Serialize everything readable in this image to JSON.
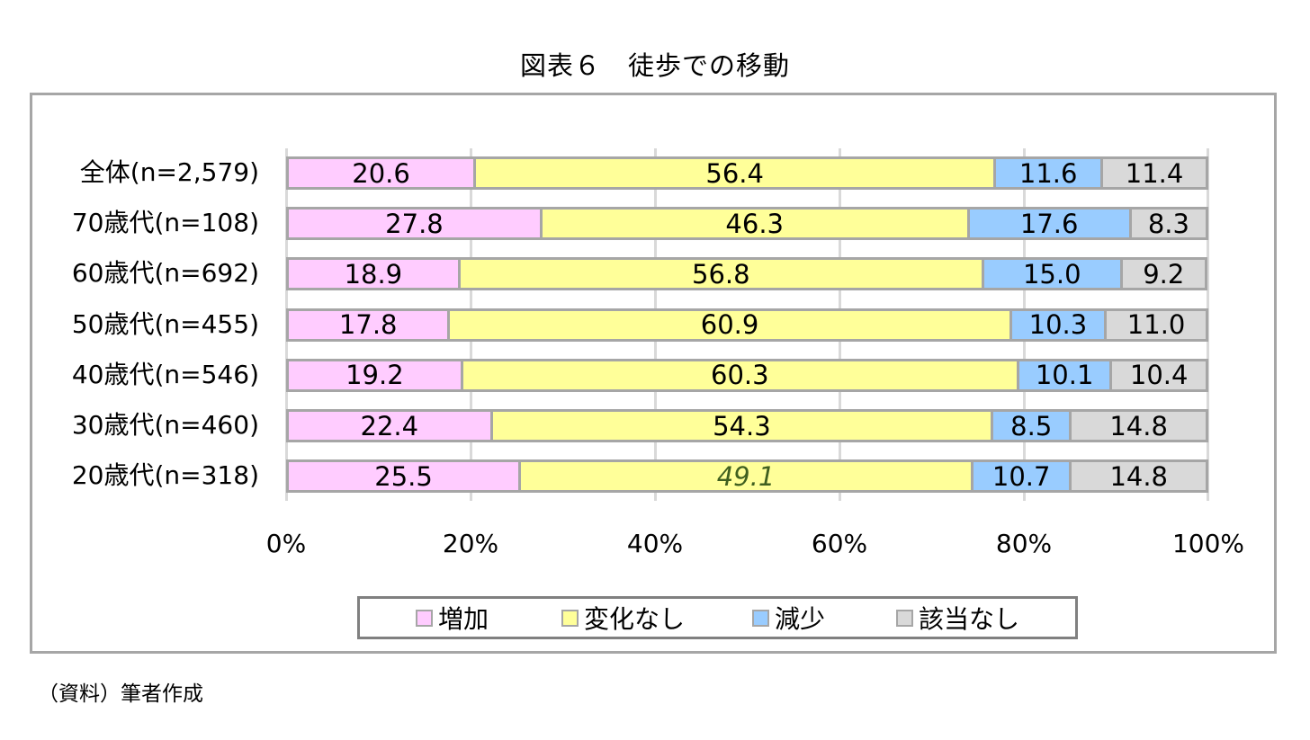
{
  "title": "図表６　徒歩での移動",
  "footnote": "（資料）筆者作成",
  "colors": {
    "increase": "#ffccff",
    "no_change": "#ffff99",
    "decrease": "#99ccff",
    "not_applicable": "#d9d9d9",
    "segment_border": "#a6a6a6",
    "frame_border": "#a6a6a6",
    "gridline": "#d9d9d9"
  },
  "legend": [
    {
      "label": "増加",
      "color": "#ffccff"
    },
    {
      "label": "変化なし",
      "color": "#ffff99"
    },
    {
      "label": "減少",
      "color": "#99ccff"
    },
    {
      "label": "該当なし",
      "color": "#d9d9d9"
    }
  ],
  "axis": {
    "ticks": [
      "0%",
      "20%",
      "40%",
      "60%",
      "80%",
      "100%"
    ]
  },
  "rows": [
    {
      "label": "全体(n=2,579)",
      "values": [
        "20.6",
        "56.4",
        "11.6",
        "11.4"
      ]
    },
    {
      "label": "70歳代(n=108)",
      "values": [
        "27.8",
        "46.3",
        "17.6",
        "8.3"
      ]
    },
    {
      "label": "60歳代(n=692)",
      "values": [
        "18.9",
        "56.8",
        "15.0",
        "9.2"
      ]
    },
    {
      "label": "50歳代(n=455)",
      "values": [
        "17.8",
        "60.9",
        "10.3",
        "11.0"
      ]
    },
    {
      "label": "40歳代(n=546)",
      "values": [
        "19.2",
        "60.3",
        "10.1",
        "10.4"
      ]
    },
    {
      "label": "30歳代(n=460)",
      "values": [
        "22.4",
        "54.3",
        "8.5",
        "14.8"
      ]
    },
    {
      "label": "20歳代(n=318)",
      "values": [
        "25.5",
        "49.1",
        "10.7",
        "14.8"
      ]
    }
  ],
  "chart_data": {
    "type": "bar",
    "orientation": "horizontal",
    "stacked": "percent",
    "title": "図表６　徒歩での移動",
    "categories": [
      "全体(n=2,579)",
      "70歳代(n=108)",
      "60歳代(n=692)",
      "50歳代(n=455)",
      "40歳代(n=546)",
      "30歳代(n=460)",
      "20歳代(n=318)"
    ],
    "series": [
      {
        "name": "増加",
        "color": "#ffccff",
        "values": [
          20.6,
          27.8,
          18.9,
          17.8,
          19.2,
          22.4,
          25.5
        ]
      },
      {
        "name": "変化なし",
        "color": "#ffff99",
        "values": [
          56.4,
          46.3,
          56.8,
          60.9,
          60.3,
          54.3,
          49.1
        ]
      },
      {
        "name": "減少",
        "color": "#99ccff",
        "values": [
          11.6,
          17.6,
          15.0,
          10.3,
          10.1,
          8.5,
          10.7
        ]
      },
      {
        "name": "該当なし",
        "color": "#d9d9d9",
        "values": [
          11.4,
          8.3,
          9.2,
          11.0,
          10.4,
          14.8,
          14.8
        ]
      }
    ],
    "xlabel": "",
    "ylabel": "",
    "xlim": [
      0,
      100
    ],
    "xticks": [
      "0%",
      "20%",
      "40%",
      "60%",
      "80%",
      "100%"
    ],
    "grid": true,
    "legend_position": "bottom",
    "data_labels": true,
    "source_note": "（資料）筆者作成"
  }
}
